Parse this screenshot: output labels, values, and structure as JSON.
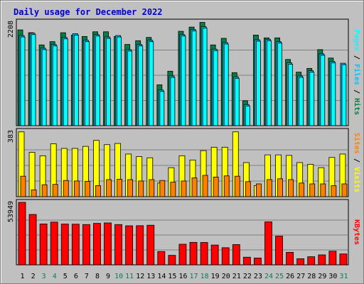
{
  "title": "Daily usage for December 2022",
  "colors": {
    "hits": "#008040",
    "files": "#00c0ff",
    "pages": "#00ffff",
    "visits": "#ffff00",
    "sites": "#ff8000",
    "kbytes": "#ff0000",
    "weekend": "#00805c",
    "weekday": "#000000",
    "grid": "#808080"
  },
  "right_labels": {
    "top": [
      "Pages",
      "Files",
      "Hits"
    ],
    "mid": [
      "Sites",
      "Visits"
    ],
    "bottom": [
      "KBytes"
    ]
  },
  "chart_data": [
    {
      "type": "bar",
      "title": "Daily usage for December 2022",
      "panel": "hits-files-pages",
      "categories": [
        "1",
        "2",
        "3",
        "4",
        "5",
        "6",
        "7",
        "8",
        "9",
        "10",
        "11",
        "12",
        "13",
        "14",
        "15",
        "16",
        "17",
        "18",
        "19",
        "20",
        "21",
        "22",
        "23",
        "24",
        "25",
        "26",
        "27",
        "28",
        "29",
        "30",
        "31"
      ],
      "weekend_days": [
        "3",
        "4",
        "10",
        "11",
        "17",
        "18",
        "24",
        "25",
        "31"
      ],
      "ylim": [
        0,
        2208
      ],
      "ytick_label": "2208",
      "series": [
        {
          "name": "Hits",
          "values": [
            2040,
            1980,
            1720,
            1790,
            1980,
            1930,
            1900,
            2000,
            2000,
            1900,
            1730,
            1810,
            1880,
            870,
            1160,
            2010,
            2100,
            2200,
            1720,
            1860,
            1130,
            530,
            1930,
            1870,
            1870,
            1410,
            1140,
            1220,
            1620,
            1440,
            0
          ]
        },
        {
          "name": "Files",
          "values": [
            1950,
            2000,
            1680,
            1760,
            1910,
            1990,
            1850,
            1970,
            1920,
            1950,
            1650,
            1760,
            1850,
            790,
            1090,
            1970,
            2080,
            2140,
            1660,
            1800,
            1070,
            480,
            1860,
            1870,
            1820,
            1370,
            1090,
            1200,
            1560,
            1400,
            1360
          ]
        },
        {
          "name": "Pages",
          "values": [
            1950,
            2000,
            1680,
            1760,
            1910,
            1990,
            1850,
            1970,
            1920,
            1950,
            1650,
            1760,
            1850,
            790,
            1090,
            1970,
            2080,
            2140,
            1660,
            1800,
            1070,
            480,
            1860,
            1870,
            1820,
            1370,
            1090,
            1200,
            1560,
            1400,
            1360
          ]
        }
      ]
    },
    {
      "type": "bar",
      "panel": "visits-sites",
      "categories": [
        "1",
        "2",
        "3",
        "4",
        "5",
        "6",
        "7",
        "8",
        "9",
        "10",
        "11",
        "12",
        "13",
        "14",
        "15",
        "16",
        "17",
        "18",
        "19",
        "20",
        "21",
        "22",
        "23",
        "24",
        "25",
        "26",
        "27",
        "28",
        "29",
        "30",
        "31"
      ],
      "ylim": [
        0,
        383
      ],
      "ytick_label": "383",
      "series": [
        {
          "name": "Visits",
          "values": [
            380,
            260,
            240,
            310,
            283,
            283,
            295,
            330,
            305,
            312,
            250,
            235,
            228,
            80,
            170,
            240,
            215,
            270,
            290,
            290,
            380,
            200,
            65,
            245,
            245,
            242,
            200,
            190,
            170,
            230,
            250
          ]
        },
        {
          "name": "Sites",
          "values": [
            120,
            40,
            70,
            72,
            95,
            92,
            90,
            65,
            100,
            102,
            100,
            92,
            100,
            95,
            85,
            92,
            110,
            125,
            115,
            122,
            120,
            88,
            75,
            100,
            105,
            100,
            80,
            75,
            75,
            65,
            75
          ]
        }
      ]
    },
    {
      "type": "bar",
      "panel": "kbytes",
      "categories": [
        "1",
        "2",
        "3",
        "4",
        "5",
        "6",
        "7",
        "8",
        "9",
        "10",
        "11",
        "12",
        "13",
        "14",
        "15",
        "16",
        "17",
        "18",
        "19",
        "20",
        "21",
        "22",
        "23",
        "24",
        "25",
        "26",
        "27",
        "28",
        "29",
        "30",
        "31"
      ],
      "ylim": [
        0,
        53949
      ],
      "ytick_label": "53949",
      "series": [
        {
          "name": "KBytes",
          "values": [
            53949,
            43500,
            35300,
            36900,
            35200,
            35100,
            34800,
            35800,
            36200,
            34800,
            33700,
            33800,
            34200,
            11500,
            8200,
            17800,
            19400,
            19300,
            17100,
            14800,
            17500,
            6600,
            5900,
            37100,
            24800,
            10800,
            5300,
            7000,
            8600,
            11800,
            9400
          ]
        }
      ]
    }
  ]
}
